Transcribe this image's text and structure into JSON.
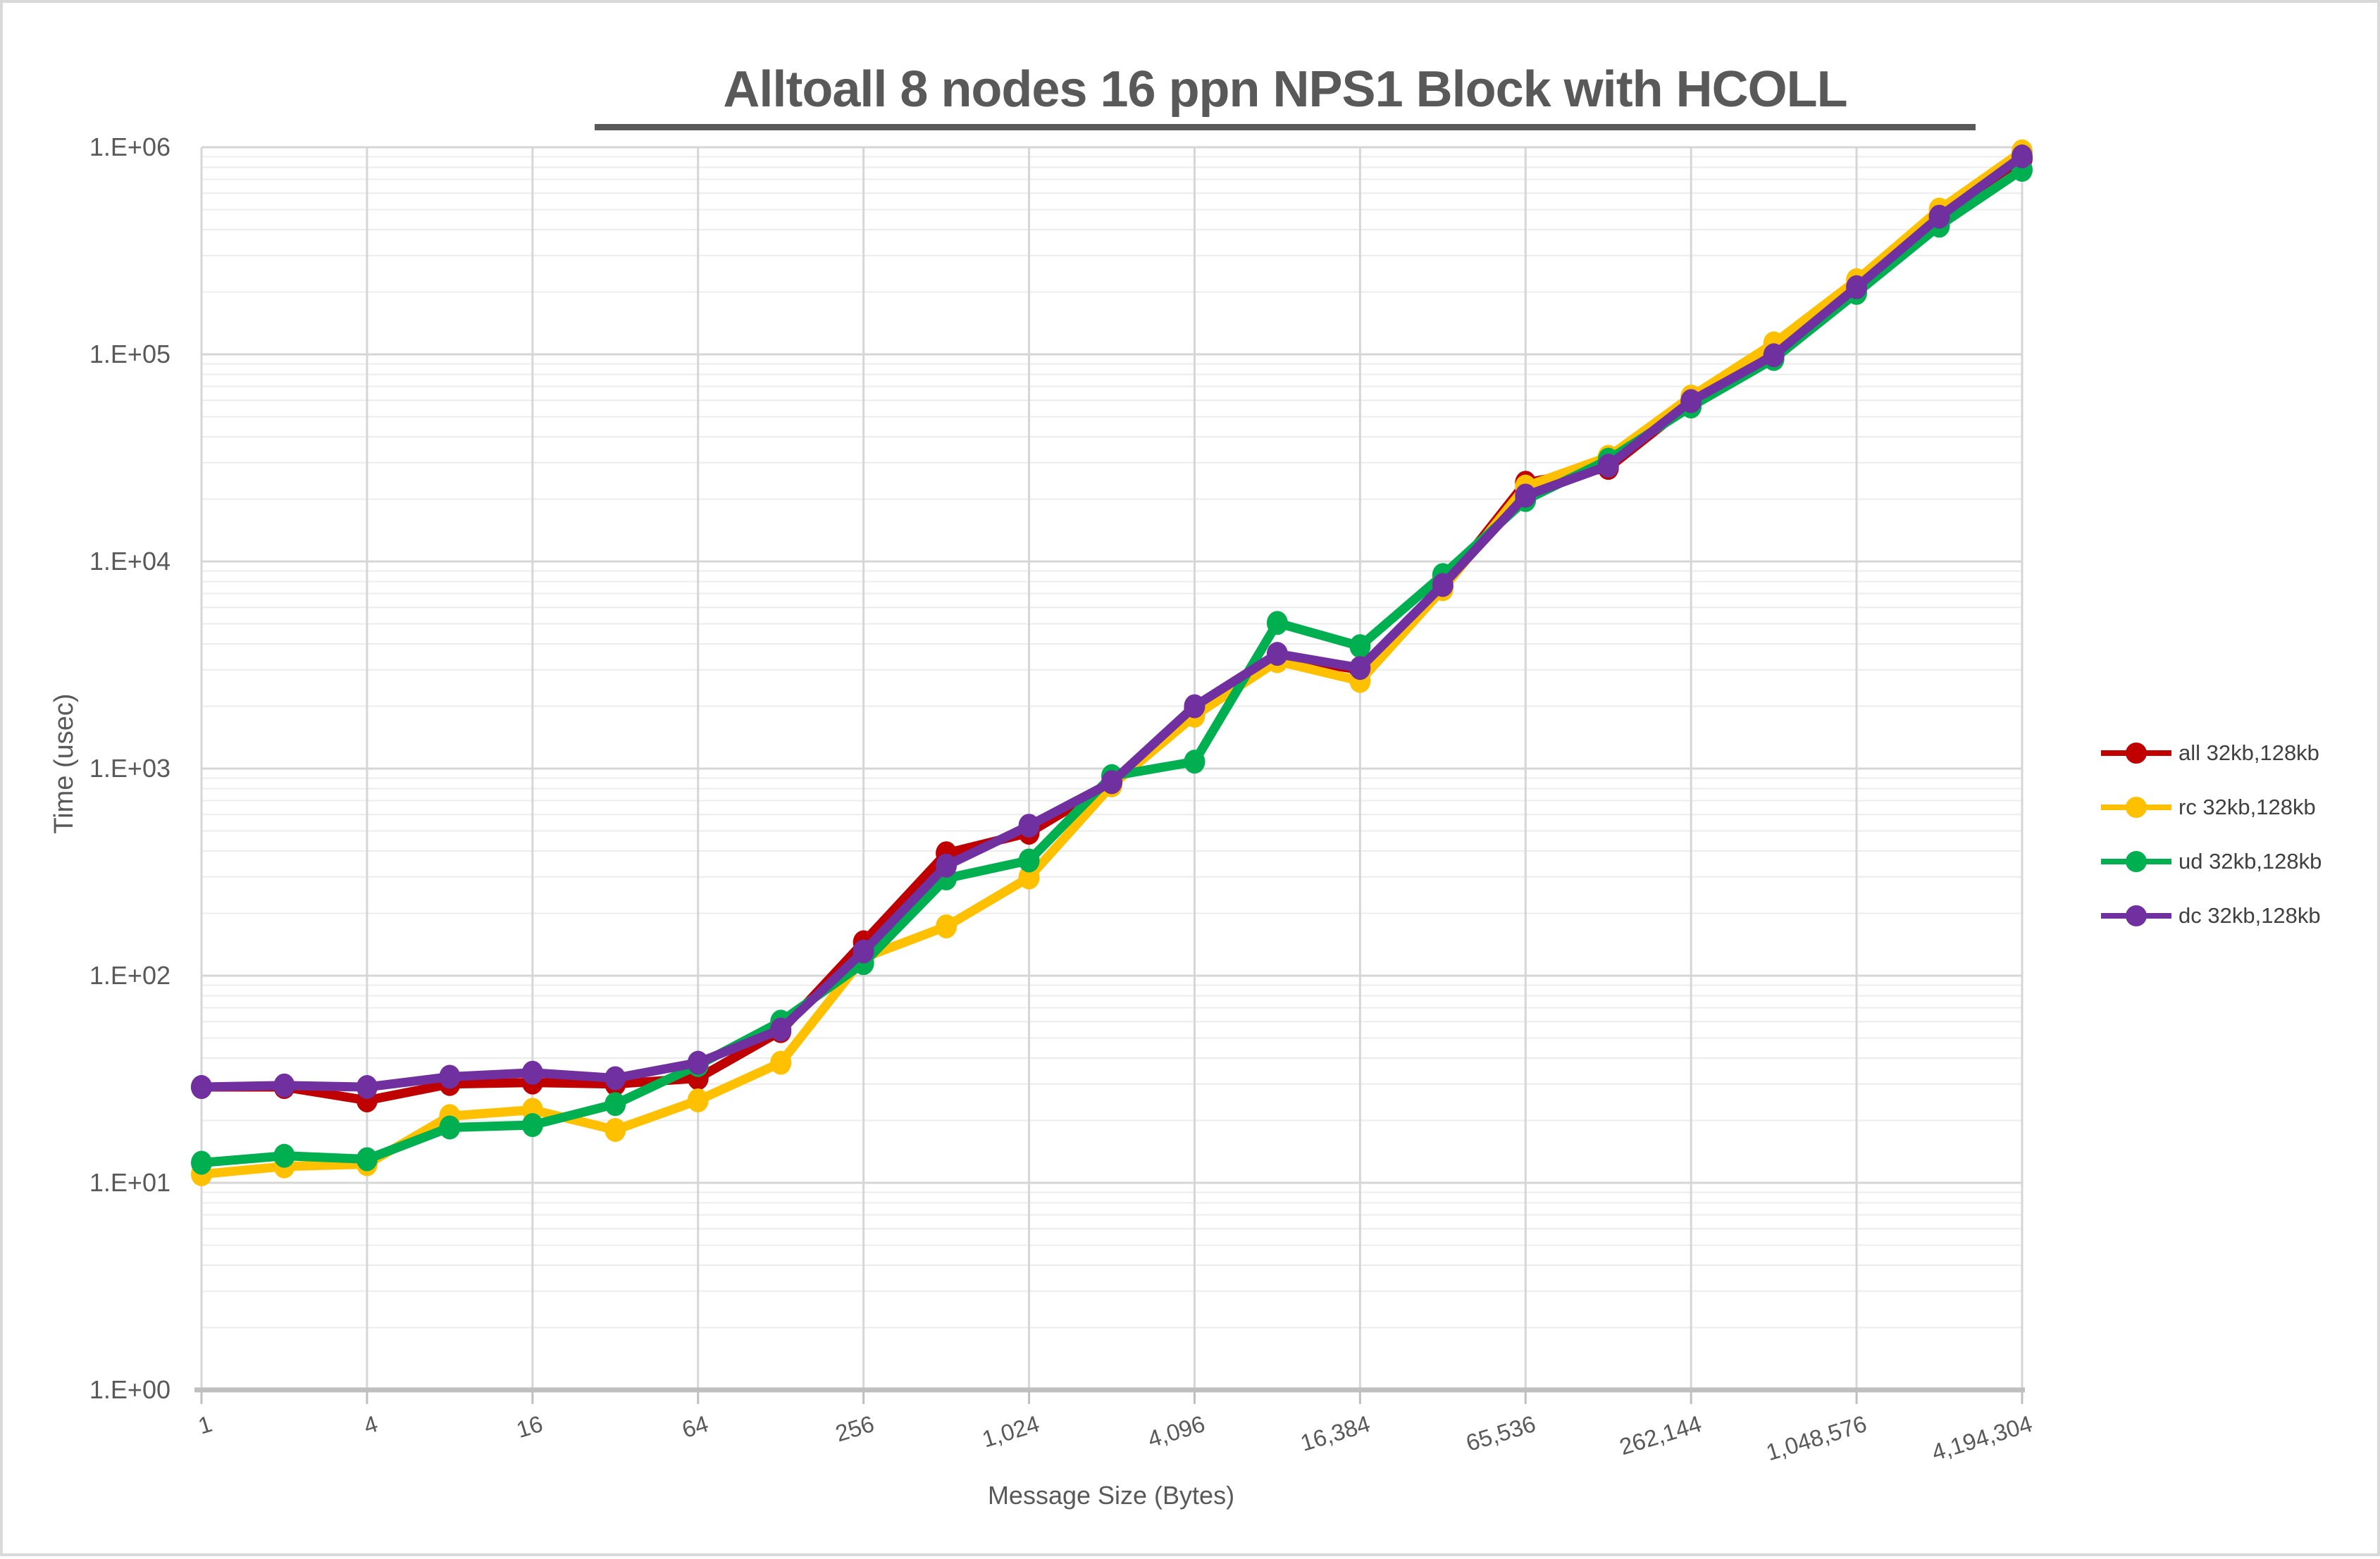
{
  "title": "Alltoall 8 nodes 16 ppn NPS1 Block with HCOLL",
  "chart_data": {
    "type": "line",
    "title": "Alltoall 8 nodes 16 ppn NPS1 Block with HCOLL",
    "xlabel": "Message Size (Bytes)",
    "ylabel": "Time (usec)",
    "x_scale": "log2",
    "y_scale": "log10",
    "y_range": [
      1,
      1000000
    ],
    "y_tick_labels": [
      "1.E+00",
      "1.E+01",
      "1.E+02",
      "1.E+03",
      "1.E+04",
      "1.E+05",
      "1.E+06"
    ],
    "x_tick_labels": [
      "1",
      "4",
      "16",
      "64",
      "256",
      "1,024",
      "4,096",
      "16,384",
      "65,536",
      "262,144",
      "1,048,576",
      "4,194,304"
    ],
    "grid": true,
    "legend_position": "right",
    "x": [
      1,
      2,
      4,
      8,
      16,
      32,
      64,
      128,
      256,
      512,
      1024,
      2048,
      4096,
      8192,
      16384,
      32768,
      65536,
      131072,
      262144,
      524288,
      1048576,
      2097152,
      4194304
    ],
    "series": [
      {
        "name": "all 32kb,128kb",
        "color": "#C00000",
        "values": [
          29,
          29,
          25,
          30,
          30.5,
          30,
          32,
          54,
          145,
          390,
          490,
          850,
          1950,
          3450,
          3000,
          7500,
          24000,
          28300,
          58500,
          100000,
          210000,
          450000,
          880000
        ]
      },
      {
        "name": "rc 32kb,128kb",
        "color": "#FFC000",
        "values": [
          11,
          12,
          12.3,
          21,
          22.5,
          18,
          25,
          38,
          122,
          173,
          298,
          830,
          1800,
          3300,
          2650,
          7350,
          23000,
          32000,
          62500,
          113000,
          228000,
          500000,
          955000
        ]
      },
      {
        "name": "ud 32kb,128kb",
        "color": "#00B050",
        "values": [
          12.5,
          13.5,
          13,
          18.5,
          19,
          24,
          37,
          60,
          115,
          295,
          360,
          920,
          1080,
          5050,
          3900,
          8600,
          19800,
          31000,
          56000,
          95000,
          198000,
          418000,
          778000
        ]
      },
      {
        "name": "dc 32kb,128kb",
        "color": "#7030A0",
        "values": [
          29,
          29.5,
          29,
          32.5,
          34,
          32,
          38,
          55,
          131,
          340,
          530,
          860,
          2000,
          3580,
          3060,
          7700,
          20800,
          29000,
          59500,
          99000,
          211000,
          462000,
          903000
        ]
      }
    ]
  },
  "colors": {
    "title_text": "#595959",
    "axis_text": "#595959",
    "legend_text": "#404040",
    "major_grid": "#d6d6d6",
    "minor_grid": "#ececec",
    "axis_line": "#bfbfbf"
  }
}
